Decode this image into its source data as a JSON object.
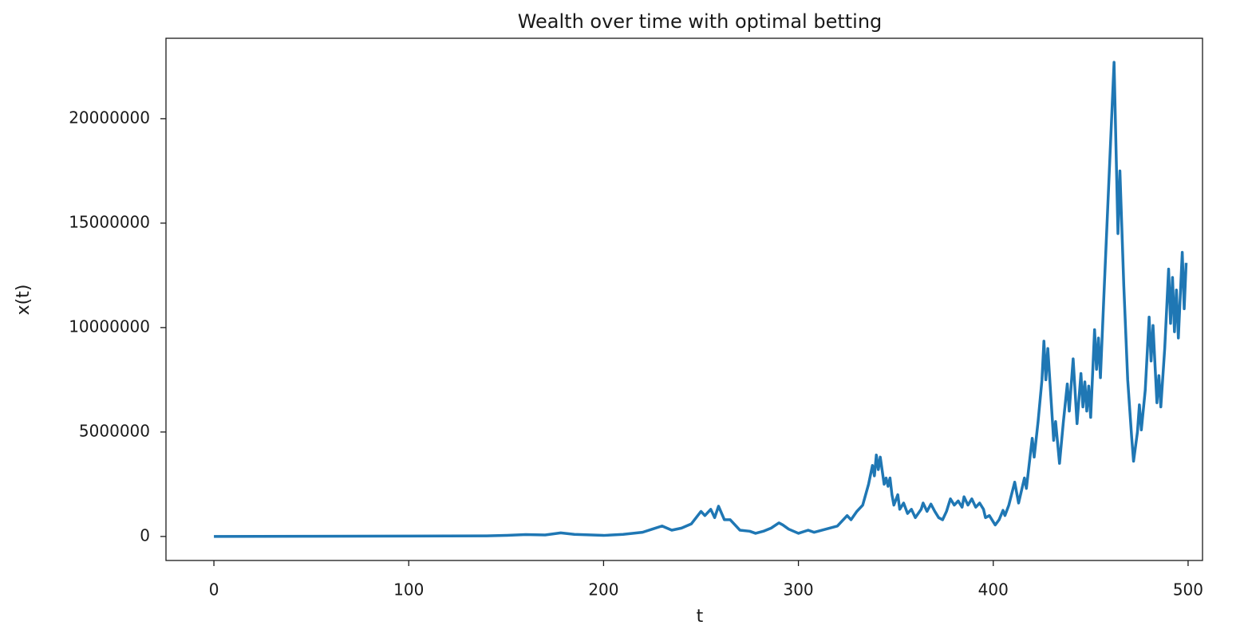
{
  "chart_data": {
    "type": "line",
    "title": "Wealth over time with optimal betting",
    "x_label": "t",
    "y_label": "x(t)",
    "color": "#1f77b4",
    "xlim": [
      -24.6,
      507.4
    ],
    "xticks": [
      0,
      100,
      200,
      300,
      400,
      500
    ],
    "ylim": [
      -1150000,
      23850000
    ],
    "yticks": [
      0,
      5000000,
      10000000,
      15000000,
      20000000
    ],
    "x": [
      0,
      50,
      100,
      140,
      150,
      160,
      170,
      178,
      185,
      200,
      210,
      220,
      225,
      230,
      235,
      240,
      245,
      250,
      252,
      255,
      257,
      259,
      262,
      265,
      270,
      275,
      278,
      282,
      286,
      290,
      292,
      295,
      300,
      305,
      308,
      312,
      316,
      320,
      325,
      327,
      330,
      333,
      336,
      338,
      339,
      340,
      341,
      342,
      344,
      345,
      346,
      347,
      348,
      349,
      351,
      352,
      354,
      356,
      358,
      360,
      363,
      364,
      366,
      368,
      370,
      372,
      374,
      376,
      378,
      380,
      382,
      384,
      385,
      387,
      389,
      391,
      393,
      395,
      396,
      398,
      400,
      401,
      403,
      405,
      406,
      408,
      411,
      413,
      416,
      417,
      420,
      421,
      423,
      425,
      426,
      427,
      428,
      431,
      432,
      434,
      436,
      438,
      439,
      441,
      443,
      445,
      446,
      447,
      448,
      449,
      450,
      452,
      453,
      454,
      455,
      457,
      462,
      464,
      465,
      467,
      469,
      471,
      472,
      474,
      475,
      476,
      478,
      480,
      481,
      482,
      484,
      485,
      486,
      488,
      490,
      491,
      492,
      493,
      494,
      495,
      497,
      498,
      499
    ],
    "values": [
      1,
      10000,
      20000,
      30000,
      50000,
      90000,
      70000,
      170000,
      100000,
      50000,
      100000,
      200000,
      350000,
      500000,
      300000,
      400000,
      600000,
      1200000,
      1000000,
      1300000,
      900000,
      1450000,
      800000,
      800000,
      300000,
      250000,
      150000,
      250000,
      400000,
      650000,
      550000,
      350000,
      150000,
      300000,
      200000,
      300000,
      400000,
      500000,
      1000000,
      800000,
      1200000,
      1500000,
      2500000,
      3400000,
      2900000,
      3900000,
      3200000,
      3800000,
      2500000,
      2800000,
      2400000,
      2800000,
      2000000,
      1500000,
      2000000,
      1300000,
      1600000,
      1100000,
      1300000,
      900000,
      1300000,
      1600000,
      1200000,
      1550000,
      1200000,
      900000,
      800000,
      1200000,
      1800000,
      1500000,
      1700000,
      1400000,
      1900000,
      1500000,
      1800000,
      1400000,
      1600000,
      1300000,
      900000,
      1000000,
      700000,
      550000,
      800000,
      1250000,
      1000000,
      1500000,
      2600000,
      1600000,
      2800000,
      2300000,
      4700000,
      3800000,
      5500000,
      7500000,
      9350000,
      7500000,
      9000000,
      4600000,
      5500000,
      3500000,
      5500000,
      7300000,
      6000000,
      8500000,
      5400000,
      7800000,
      6200000,
      7400000,
      6000000,
      7200000,
      5700000,
      9900000,
      8000000,
      9500000,
      7600000,
      12000000,
      22700000,
      14500000,
      17500000,
      12000000,
      7500000,
      4800000,
      3600000,
      5000000,
      6300000,
      5100000,
      7000000,
      10500000,
      8400000,
      10100000,
      6400000,
      7700000,
      6200000,
      9000000,
      12800000,
      10200000,
      12400000,
      9800000,
      11800000,
      9500000,
      13600000,
      10900000,
      13100000
    ]
  }
}
